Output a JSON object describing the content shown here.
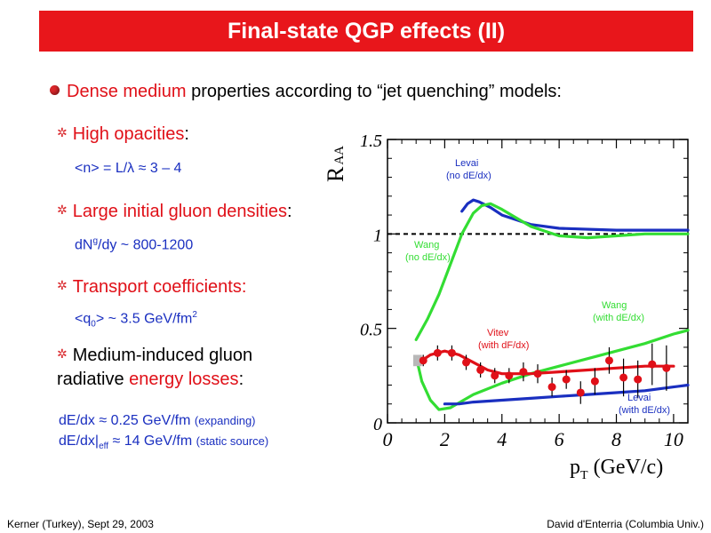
{
  "title": "Final-state QGP effects (II)",
  "main_bullet": {
    "highlight": "Dense medium",
    "rest": " properties according to “jet quenching” models:"
  },
  "items": [
    {
      "label": "High opacities",
      "suffix": ":",
      "value_pre": "<n> = L/",
      "value_sym": "λ",
      "value_post": " ≈ 3 – 4"
    },
    {
      "label": "Large initial gluon densities",
      "suffix": ":",
      "value_pre": "dN",
      "value_sup": "g",
      "value_post": "/dy ~ 800-1200"
    },
    {
      "label": "Transport coefficients:",
      "value_pre": "<q",
      "value_sub": "0",
      "value_post": "> ~ 3.5 GeV/fm",
      "value_sup2": "2"
    },
    {
      "label_line1": "Medium-induced gluon",
      "label_line2_pre": "radiative ",
      "label_line2_highlight": "energy losses",
      "label_line2_post": ":"
    }
  ],
  "eloss": {
    "line1_main": "dE/dx ≈ 0.25 GeV/fm ",
    "line1_note": "(expanding)",
    "line2_pre": "dE/dx|",
    "line2_sub": "eff",
    "line2_main": " ≈ 14 GeV/fm ",
    "line2_note": "(static source)"
  },
  "footer": {
    "left": "Kerner (Turkey), Sept 29, 2003",
    "right": "David d'Enterria (Columbia Univ.)"
  },
  "chart_data": {
    "type": "line",
    "ylabel_main": "R",
    "ylabel_sub": "AA",
    "xlabel_main": "p",
    "xlabel_sub": "T",
    "xlabel_unit": "(GeV/c)",
    "xlim": [
      0,
      10.5
    ],
    "ylim": [
      0,
      1.5
    ],
    "x_ticks": [
      "0",
      "2",
      "4",
      "6",
      "8",
      "10"
    ],
    "y_ticks": [
      "0",
      "0.5",
      "1",
      "1.5"
    ],
    "x_tick_values": [
      0,
      2,
      4,
      6,
      8,
      10
    ],
    "y_tick_values": [
      0,
      0.5,
      1,
      1.5
    ],
    "reference_line": 1,
    "colors": {
      "levai": "#1a2fc0",
      "wang": "#33dd33",
      "vitev": "#e01018",
      "data": "#e01018",
      "box": "#b8b8b8"
    },
    "series": [
      {
        "name": "Levai (no dE/dx)",
        "color": "#1a2fc0",
        "x": [
          2.6,
          2.8,
          3.0,
          3.2,
          3.6,
          4.0,
          5.0,
          6.0,
          8.0,
          10.0,
          10.5
        ],
        "y": [
          1.12,
          1.16,
          1.18,
          1.17,
          1.14,
          1.1,
          1.05,
          1.03,
          1.02,
          1.02,
          1.02
        ]
      },
      {
        "name": "Wang (no dE/dx)",
        "color": "#33dd33",
        "x": [
          1.0,
          1.4,
          1.8,
          2.2,
          2.6,
          3.0,
          3.3,
          3.6,
          4.0,
          5.0,
          6.0,
          7.0,
          8.0,
          9.0,
          10.0,
          10.5
        ],
        "y": [
          0.44,
          0.55,
          0.68,
          0.84,
          1.0,
          1.11,
          1.15,
          1.16,
          1.13,
          1.04,
          0.99,
          0.98,
          0.99,
          1.0,
          1.0,
          1.0
        ]
      },
      {
        "name": "Wang (with dE/dx)",
        "color": "#33dd33",
        "x": [
          1.0,
          1.2,
          1.5,
          1.8,
          2.2,
          3.0,
          4.0,
          5.0,
          6.0,
          7.0,
          8.0,
          9.0,
          10.0,
          10.5
        ],
        "y": [
          0.35,
          0.22,
          0.12,
          0.07,
          0.08,
          0.15,
          0.21,
          0.26,
          0.3,
          0.34,
          0.38,
          0.42,
          0.47,
          0.49
        ]
      },
      {
        "name": "Vitev (with dF/dx)",
        "color": "#e01018",
        "x": [
          1.0,
          1.5,
          2.0,
          2.5,
          3.0,
          3.5,
          4.0,
          5.0,
          6.0,
          7.0,
          8.0,
          9.0,
          10.0
        ],
        "y": [
          0.31,
          0.36,
          0.38,
          0.36,
          0.32,
          0.28,
          0.26,
          0.26,
          0.27,
          0.28,
          0.29,
          0.3,
          0.3
        ]
      },
      {
        "name": "Levai (with dE/dx)",
        "color": "#1a2fc0",
        "x": [
          2.0,
          2.5,
          3.0,
          4.0,
          5.0,
          6.0,
          7.0,
          8.0,
          9.0,
          10.0,
          10.5
        ],
        "y": [
          0.1,
          0.1,
          0.11,
          0.12,
          0.13,
          0.14,
          0.15,
          0.16,
          0.17,
          0.19,
          0.2
        ]
      }
    ],
    "points": {
      "x": [
        1.25,
        1.75,
        2.25,
        2.75,
        3.25,
        3.75,
        4.25,
        4.75,
        5.25,
        5.75,
        6.25,
        6.75,
        7.25,
        7.75,
        8.25,
        8.75,
        9.25,
        9.75
      ],
      "y": [
        0.33,
        0.37,
        0.37,
        0.32,
        0.28,
        0.25,
        0.25,
        0.27,
        0.26,
        0.19,
        0.23,
        0.16,
        0.22,
        0.33,
        0.24,
        0.23,
        0.31,
        0.29
      ],
      "err": [
        0.03,
        0.04,
        0.04,
        0.04,
        0.04,
        0.04,
        0.04,
        0.05,
        0.05,
        0.05,
        0.05,
        0.06,
        0.07,
        0.07,
        0.1,
        0.1,
        0.11,
        0.12
      ]
    },
    "syst_box": {
      "x": 1.05,
      "y": 0.33,
      "half_width": 0.15,
      "half_height": 0.03
    },
    "annotations": [
      {
        "series": "Levai (no dE/dx)",
        "line1": "Levai",
        "line2": "(no dE/dx)",
        "color": "#1a2fc0"
      },
      {
        "series": "Wang (no dE/dx)",
        "line1": "Wang",
        "line2": "(no dE/dx)",
        "color": "#33dd33"
      },
      {
        "series": "Wang (with dE/dx)",
        "line1": "Wang",
        "line2": "(with dE/dx)",
        "color": "#33dd33"
      },
      {
        "series": "Vitev (with dF/dx)",
        "line1": "Vitev",
        "line2": "(with dF/dx)",
        "color": "#e01018"
      },
      {
        "series": "Levai (with dE/dx)",
        "line1": "Levai",
        "line2": "(with dE/dx)",
        "color": "#1a2fc0"
      }
    ]
  }
}
